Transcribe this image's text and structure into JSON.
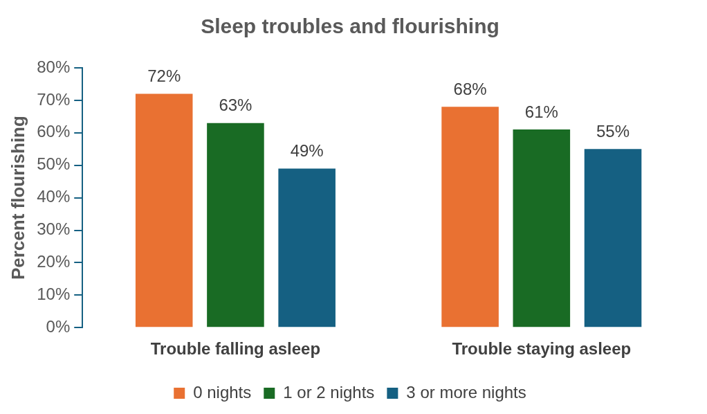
{
  "chart_data": {
    "type": "bar",
    "title": "Sleep troubles and flourishing",
    "ylabel": "Percent flourishing",
    "categories": [
      "Trouble falling asleep",
      "Trouble staying asleep"
    ],
    "series": [
      {
        "name": "0 nights",
        "color": "#e97132",
        "values": [
          72,
          68
        ],
        "value_labels": [
          "72%",
          "68%"
        ]
      },
      {
        "name": "1 or 2 nights",
        "color": "#196b24",
        "values": [
          63,
          61
        ],
        "value_labels": [
          "63%",
          "61%"
        ]
      },
      {
        "name": "3 or more nights",
        "color": "#156082",
        "values": [
          49,
          55
        ],
        "value_labels": [
          "49%",
          "55%"
        ]
      }
    ],
    "ylim": [
      0,
      80
    ],
    "yticks": [
      {
        "value": 0,
        "label": "0%"
      },
      {
        "value": 10,
        "label": "10%"
      },
      {
        "value": 20,
        "label": "20%"
      },
      {
        "value": 30,
        "label": "30%"
      },
      {
        "value": 40,
        "label": "40%"
      },
      {
        "value": 50,
        "label": "50%"
      },
      {
        "value": 60,
        "label": "60%"
      },
      {
        "value": 70,
        "label": "70%"
      },
      {
        "value": 80,
        "label": "80%"
      }
    ],
    "grid": false,
    "legend": "bottom"
  }
}
